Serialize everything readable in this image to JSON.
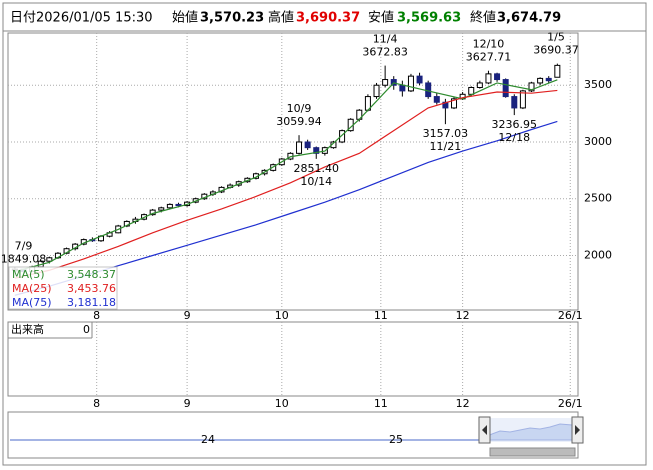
{
  "header": {
    "date_name": "日付",
    "date": "2026/01/05 15:30",
    "items": [
      {
        "name": "始値",
        "value": 3570.23,
        "label": "3,570.23",
        "color": "#000000"
      },
      {
        "name": "高値",
        "value": 3690.37,
        "label": "3,690.37",
        "color": "#e00000"
      },
      {
        "name": "安値",
        "value": 3569.63,
        "label": "3,569.63",
        "color": "#008000"
      },
      {
        "name": "終値",
        "value": 3674.79,
        "label": "3,674.79",
        "color": "#000000"
      }
    ]
  },
  "chart_data": {
    "type": "candlestick",
    "up_color": "#ffffff",
    "down_color": "#1a237e",
    "edge_color": "#000000",
    "candles": [
      [
        1870,
        1895,
        1860,
        1880
      ],
      [
        1880,
        1885,
        1849.08,
        1860
      ],
      [
        1860,
        1910,
        1855,
        1900
      ],
      [
        1900,
        1960,
        1895,
        1950
      ],
      [
        1950,
        1990,
        1930,
        1980
      ],
      [
        1980,
        2030,
        1970,
        2020
      ],
      [
        2020,
        2070,
        2010,
        2060
      ],
      [
        2060,
        2110,
        2045,
        2100
      ],
      [
        2100,
        2150,
        2090,
        2140
      ],
      [
        2140,
        2160,
        2120,
        2130
      ],
      [
        2130,
        2180,
        2120,
        2170
      ],
      [
        2170,
        2215,
        2160,
        2200
      ],
      [
        2200,
        2270,
        2195,
        2260
      ],
      [
        2260,
        2310,
        2250,
        2300
      ],
      [
        2300,
        2340,
        2280,
        2320
      ],
      [
        2320,
        2370,
        2310,
        2360
      ],
      [
        2360,
        2410,
        2350,
        2400
      ],
      [
        2400,
        2430,
        2380,
        2420
      ],
      [
        2420,
        2460,
        2410,
        2450
      ],
      [
        2450,
        2465,
        2425,
        2440
      ],
      [
        2440,
        2480,
        2430,
        2470
      ],
      [
        2470,
        2510,
        2460,
        2500
      ],
      [
        2500,
        2550,
        2490,
        2540
      ],
      [
        2540,
        2575,
        2525,
        2560
      ],
      [
        2560,
        2610,
        2550,
        2600
      ],
      [
        2600,
        2635,
        2590,
        2620
      ],
      [
        2620,
        2660,
        2605,
        2650
      ],
      [
        2650,
        2690,
        2640,
        2680
      ],
      [
        2680,
        2730,
        2670,
        2720
      ],
      [
        2720,
        2760,
        2705,
        2750
      ],
      [
        2750,
        2810,
        2740,
        2800
      ],
      [
        2800,
        2860,
        2790,
        2850
      ],
      [
        2850,
        2910,
        2840,
        2900
      ],
      [
        2900,
        3059.94,
        2890,
        3000
      ],
      [
        3000,
        3020,
        2930,
        2950
      ],
      [
        2950,
        2960,
        2851.4,
        2900
      ],
      [
        2900,
        2960,
        2880,
        2950
      ],
      [
        2950,
        3010,
        2940,
        3000
      ],
      [
        3000,
        3110,
        2990,
        3100
      ],
      [
        3100,
        3210,
        3090,
        3200
      ],
      [
        3200,
        3290,
        3180,
        3280
      ],
      [
        3280,
        3420,
        3270,
        3400
      ],
      [
        3400,
        3520,
        3380,
        3500
      ],
      [
        3500,
        3672.83,
        3480,
        3550
      ],
      [
        3550,
        3580,
        3460,
        3500
      ],
      [
        3500,
        3540,
        3400,
        3450
      ],
      [
        3450,
        3600,
        3440,
        3580
      ],
      [
        3580,
        3610,
        3500,
        3520
      ],
      [
        3520,
        3540,
        3380,
        3400
      ],
      [
        3400,
        3430,
        3330,
        3350
      ],
      [
        3350,
        3380,
        3157.03,
        3300
      ],
      [
        3300,
        3400,
        3290,
        3380
      ],
      [
        3380,
        3440,
        3370,
        3420
      ],
      [
        3420,
        3490,
        3400,
        3480
      ],
      [
        3480,
        3540,
        3470,
        3520
      ],
      [
        3520,
        3627.71,
        3510,
        3600
      ],
      [
        3600,
        3610,
        3530,
        3550
      ],
      [
        3550,
        3560,
        3390,
        3400
      ],
      [
        3400,
        3420,
        3236.95,
        3300
      ],
      [
        3300,
        3460,
        3290,
        3450
      ],
      [
        3450,
        3530,
        3440,
        3520
      ],
      [
        3520,
        3570,
        3500,
        3560
      ],
      [
        3560,
        3580,
        3520,
        3540
      ],
      [
        3570.23,
        3690.37,
        3569.63,
        3674.79
      ]
    ],
    "series": [
      {
        "name": "MA(5)",
        "latest": "3,548.37",
        "color": "#2e8b2e",
        "x": [
          0,
          4,
          8,
          12,
          16,
          20,
          24,
          28,
          32,
          36,
          40,
          44,
          48,
          52,
          56,
          60,
          63
        ],
        "values": [
          1860,
          1940,
          2110,
          2230,
          2370,
          2450,
          2570,
          2690,
          2870,
          2920,
          3200,
          3520,
          3450,
          3380,
          3520,
          3460,
          3548
        ]
      },
      {
        "name": "MA(25)",
        "latest": "3,453.76",
        "color": "#e02020",
        "x": [
          0,
          4,
          8,
          12,
          16,
          20,
          24,
          28,
          32,
          36,
          40,
          44,
          48,
          52,
          56,
          60,
          63
        ],
        "values": [
          1800,
          1870,
          1970,
          2080,
          2200,
          2310,
          2410,
          2520,
          2640,
          2780,
          2900,
          3100,
          3300,
          3390,
          3440,
          3430,
          3454
        ]
      },
      {
        "name": "MA(75)",
        "latest": "3,181.18",
        "color": "#2030d0",
        "x": [
          0,
          4,
          8,
          12,
          16,
          20,
          24,
          28,
          32,
          36,
          40,
          44,
          48,
          52,
          56,
          60,
          63
        ],
        "values": [
          1650,
          1730,
          1820,
          1910,
          2000,
          2090,
          2180,
          2270,
          2370,
          2470,
          2580,
          2700,
          2820,
          2920,
          3010,
          3110,
          3181
        ]
      }
    ],
    "annotations": [
      {
        "date": "7/9",
        "value": 1849.08,
        "label": "1849.08"
      },
      {
        "date": "10/9",
        "value": 3059.94,
        "label": "3059.94"
      },
      {
        "date": "10/14",
        "value": 2851.4,
        "label": "2851.40"
      },
      {
        "date": "11/4",
        "value": 3672.83,
        "label": "3672.83"
      },
      {
        "date": "11/21",
        "value": 3157.03,
        "label": "3157.03"
      },
      {
        "date": "12/10",
        "value": 3627.71,
        "label": "3627.71"
      },
      {
        "date": "12/18",
        "value": 3236.95,
        "label": "3236.95"
      },
      {
        "date": "1/5",
        "value": 3690.37,
        "label": "3690.37"
      }
    ],
    "xlim": [
      -0.8,
      65.4
    ],
    "xticks": [
      {
        "value": 9.5,
        "label": "8"
      },
      {
        "value": 20,
        "label": "9"
      },
      {
        "value": 31,
        "label": "10"
      },
      {
        "value": 42.5,
        "label": "11"
      },
      {
        "value": 52,
        "label": "12"
      },
      {
        "value": 64.5,
        "label": "26/1"
      }
    ],
    "ylim": [
      1520,
      3960
    ],
    "yticks": [
      2000,
      2500,
      3000,
      3500
    ],
    "grid": true,
    "volume": {
      "name": "出来高",
      "value": 0
    },
    "navigator_labels": [
      "24",
      "25"
    ]
  }
}
